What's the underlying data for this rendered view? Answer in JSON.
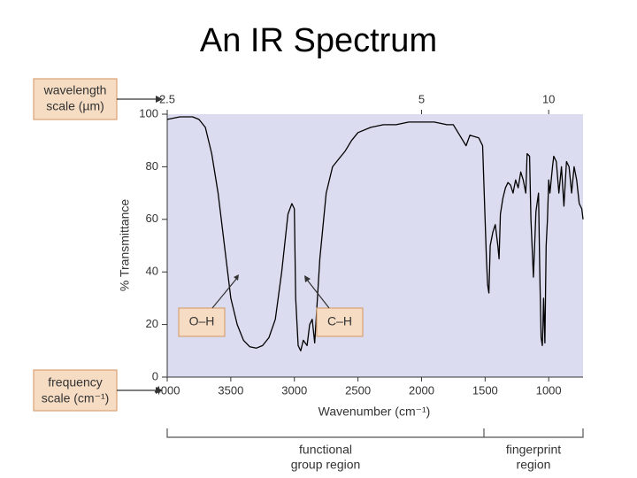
{
  "chart_data": {
    "type": "line",
    "title": "An IR Spectrum",
    "xlabel": "Wavenumber (cm⁻¹)",
    "ylabel": "% Transmittance",
    "xlim": [
      4000,
      730
    ],
    "ylim": [
      0,
      100
    ],
    "xticks": [
      4000,
      3500,
      3000,
      2500,
      2000,
      1500,
      1000
    ],
    "yticks": [
      0,
      20,
      40,
      60,
      80,
      100
    ],
    "x2ticks": [
      2.5,
      5,
      10
    ],
    "color": "#000000",
    "background": "#dcdcf0",
    "x": [
      4000,
      3900,
      3800,
      3750,
      3700,
      3650,
      3600,
      3550,
      3500,
      3450,
      3400,
      3350,
      3300,
      3250,
      3200,
      3150,
      3100,
      3050,
      3020,
      3000,
      2990,
      2970,
      2950,
      2930,
      2900,
      2880,
      2860,
      2840,
      2800,
      2750,
      2700,
      2650,
      2600,
      2550,
      2500,
      2400,
      2300,
      2200,
      2100,
      2000,
      1900,
      1800,
      1750,
      1700,
      1650,
      1620,
      1550,
      1520,
      1500,
      1490,
      1480,
      1470,
      1460,
      1440,
      1420,
      1400,
      1390,
      1380,
      1360,
      1340,
      1320,
      1300,
      1280,
      1260,
      1240,
      1220,
      1200,
      1180,
      1170,
      1150,
      1140,
      1120,
      1100,
      1080,
      1070,
      1060,
      1050,
      1045,
      1040,
      1030,
      1020,
      1010,
      1000,
      990,
      970,
      960,
      940,
      920,
      900,
      880,
      860,
      840,
      820,
      800,
      780,
      760,
      740,
      730
    ],
    "values": [
      98,
      99,
      99,
      98,
      95,
      85,
      70,
      50,
      30,
      20,
      14,
      11.5,
      11,
      12,
      15,
      22,
      40,
      62,
      66,
      64,
      30,
      12,
      10,
      14,
      12,
      20,
      22,
      13,
      45,
      70,
      80,
      83,
      86,
      90,
      93,
      95,
      96,
      96,
      97,
      97,
      97,
      96,
      96,
      92,
      88,
      92,
      91,
      88,
      60,
      45,
      35,
      32,
      50,
      55,
      58,
      50,
      45,
      62,
      68,
      72,
      74,
      73,
      70,
      75,
      72,
      78,
      75,
      70,
      85,
      84,
      60,
      38,
      63,
      70,
      40,
      15,
      12,
      20,
      30,
      13,
      50,
      60,
      75,
      70,
      80,
      84,
      82,
      70,
      80,
      65,
      82,
      80,
      70,
      80,
      75,
      66,
      64,
      60
    ],
    "callouts": {
      "wavelength": [
        "wavelength",
        "scale (µm)"
      ],
      "frequency": [
        "frequency",
        "scale (cm⁻¹)"
      ],
      "oh": "O–H",
      "ch": "C–H",
      "functional": [
        "functional",
        "group region"
      ],
      "fingerprint": [
        "fingerprint",
        "region"
      ]
    }
  }
}
